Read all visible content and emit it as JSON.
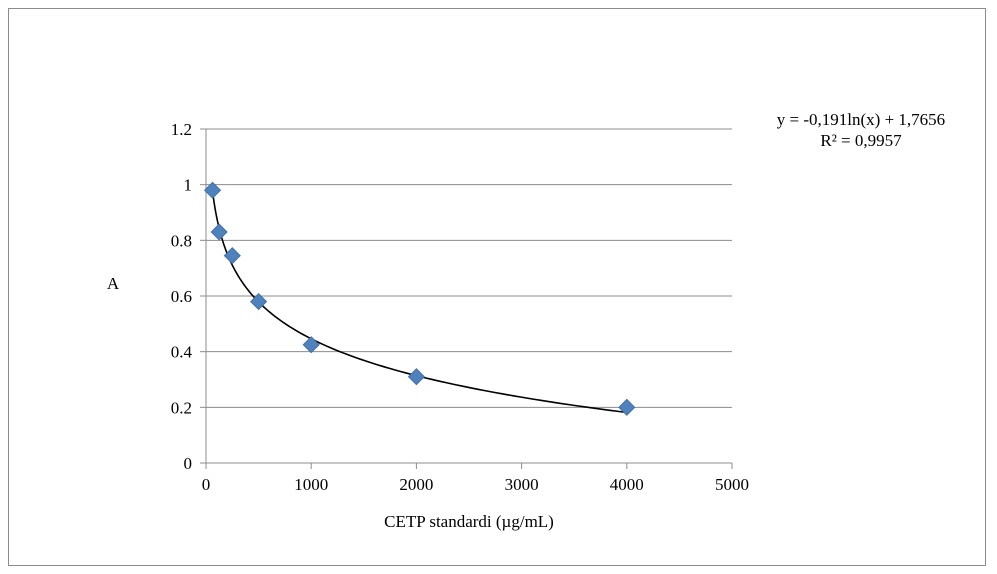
{
  "chart_data": {
    "type": "scatter",
    "title": "",
    "xlabel": "CETP standardi (µg/mL)",
    "ylabel": "A",
    "xlim": [
      0,
      5000
    ],
    "ylim": [
      0,
      1.2
    ],
    "xticks": [
      0,
      1000,
      2000,
      3000,
      4000,
      5000
    ],
    "yticks": [
      0,
      0.2,
      0.4,
      0.6,
      0.8,
      1,
      1.2
    ],
    "xtick_labels": [
      "0",
      "1000",
      "2000",
      "3000",
      "4000",
      "5000"
    ],
    "ytick_labels": [
      "0",
      "0.2",
      "0.4",
      "0.6",
      "0.8",
      "1",
      "1.2"
    ],
    "grid": "horizontal",
    "legend": "none",
    "series": [
      {
        "x": [
          62.5,
          125,
          250,
          500,
          1000,
          2000,
          4000
        ],
        "y": [
          0.98,
          0.83,
          0.745,
          0.58,
          0.425,
          0.31,
          0.2
        ],
        "marker": "diamond",
        "color": "#4f81bd"
      }
    ],
    "trendline": {
      "type": "logarithmic",
      "a": -0.191,
      "b": 1.7656,
      "x_range": [
        62.5,
        4000
      ],
      "color": "#000000",
      "equation_label": "y = -0,191ln(x) + 1,7656",
      "r2_label": "R² = 0,9957"
    }
  }
}
